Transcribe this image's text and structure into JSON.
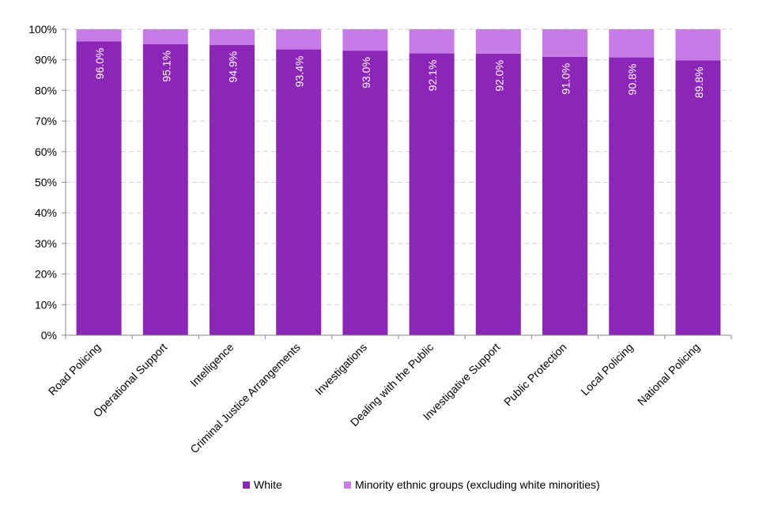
{
  "chart_data": {
    "type": "bar",
    "stacked": true,
    "percent": true,
    "categories": [
      "Road Policing",
      "Operational Support",
      "Intelligence",
      "Criminal Justice Arrangements",
      "Investigations",
      "Dealing with the Public",
      "Investigative Support",
      "Public Protection",
      "Local Policing",
      "National Policing"
    ],
    "series": [
      {
        "name": "White",
        "color": "#8B26B8",
        "values": [
          96.0,
          95.1,
          94.9,
          93.4,
          93.0,
          92.1,
          92.0,
          91.0,
          90.8,
          89.8
        ],
        "labels": [
          "96.0%",
          "95.1%",
          "94.9%",
          "93.4%",
          "93.0%",
          "92.1%",
          "92.0%",
          "91.0%",
          "90.8%",
          "89.8%"
        ]
      },
      {
        "name": "Minority ethnic groups (excluding white minorities)",
        "color": "#C77BE6",
        "values": [
          4.0,
          4.9,
          5.1,
          6.6,
          7.0,
          7.9,
          8.0,
          9.0,
          9.2,
          10.2
        ]
      }
    ],
    "ylim": [
      0,
      100
    ],
    "yticks": [
      0,
      10,
      20,
      30,
      40,
      50,
      60,
      70,
      80,
      90,
      100
    ],
    "ytick_labels": [
      "0%",
      "10%",
      "20%",
      "30%",
      "40%",
      "50%",
      "60%",
      "70%",
      "80%",
      "90%",
      "100%"
    ],
    "grid": true,
    "legend": "bottom"
  }
}
